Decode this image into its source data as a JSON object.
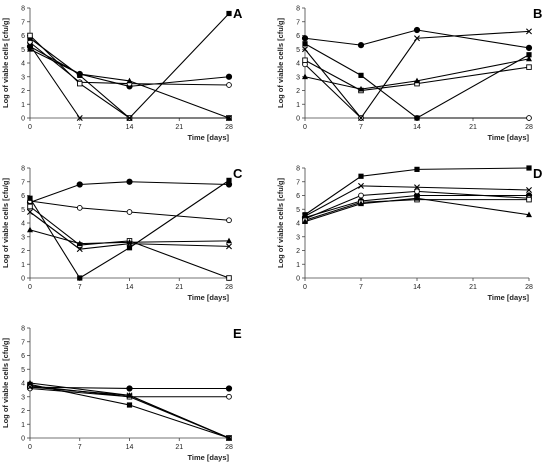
{
  "chart_data": [
    {
      "type": "line",
      "panel_label": "A",
      "xlabel": "Time [days]",
      "ylabel": "Log of viable cells [cfu/g]",
      "xlim": [
        0,
        28
      ],
      "ylim": [
        0,
        8
      ],
      "xticks": [
        0,
        7,
        14,
        21,
        28
      ],
      "yticks": [
        0,
        1,
        2,
        3,
        4,
        5,
        6,
        7,
        8
      ],
      "x": [
        0,
        7,
        14,
        28
      ],
      "series": [
        {
          "marker": "filled-circle",
          "values": [
            5.2,
            3.2,
            2.3,
            3.0
          ]
        },
        {
          "marker": "open-circle",
          "values": [
            5.5,
            2.6,
            2.5,
            2.4
          ]
        },
        {
          "marker": "filled-square",
          "values": [
            5.8,
            3.1,
            0,
            7.6
          ]
        },
        {
          "marker": "open-square",
          "values": [
            6.0,
            2.5,
            0,
            0
          ]
        },
        {
          "marker": "filled-triangle",
          "values": [
            5.0,
            3.2,
            2.7,
            0
          ]
        },
        {
          "marker": "cross",
          "values": [
            5.3,
            0,
            0,
            0
          ]
        }
      ]
    },
    {
      "type": "line",
      "panel_label": "B",
      "xlabel": "Time [days]",
      "ylabel": "Log of viable cells [cfu/g]",
      "xlim": [
        0,
        28
      ],
      "ylim": [
        0,
        8
      ],
      "xticks": [
        0,
        7,
        14,
        21,
        28
      ],
      "yticks": [
        0,
        1,
        2,
        3,
        4,
        5,
        6,
        7,
        8
      ],
      "x": [
        0,
        7,
        14,
        28
      ],
      "series": [
        {
          "marker": "filled-circle",
          "values": [
            5.8,
            5.3,
            6.4,
            5.1
          ]
        },
        {
          "marker": "open-circle",
          "values": [
            3.9,
            0,
            0,
            0
          ]
        },
        {
          "marker": "filled-square",
          "values": [
            5.4,
            3.1,
            0,
            4.6
          ]
        },
        {
          "marker": "open-square",
          "values": [
            4.2,
            2.0,
            2.5,
            3.7
          ]
        },
        {
          "marker": "filled-triangle",
          "values": [
            3.0,
            2.1,
            2.7,
            4.3
          ]
        },
        {
          "marker": "cross",
          "values": [
            5.0,
            0,
            5.8,
            6.3
          ]
        }
      ]
    },
    {
      "type": "line",
      "panel_label": "C",
      "xlabel": "Time [days]",
      "ylabel": "Log of viable cells [cfu/g]",
      "xlim": [
        0,
        28
      ],
      "ylim": [
        0,
        8
      ],
      "xticks": [
        0,
        7,
        14,
        21,
        28
      ],
      "yticks": [
        0,
        1,
        2,
        3,
        4,
        5,
        6,
        7,
        8
      ],
      "x": [
        0,
        7,
        14,
        28
      ],
      "series": [
        {
          "marker": "filled-circle",
          "values": [
            5.5,
            6.8,
            7.0,
            6.8
          ]
        },
        {
          "marker": "open-circle",
          "values": [
            5.6,
            5.1,
            4.8,
            4.2
          ]
        },
        {
          "marker": "filled-square",
          "values": [
            5.8,
            0,
            2.2,
            7.1
          ]
        },
        {
          "marker": "open-square",
          "values": [
            5.2,
            2.4,
            2.7,
            0
          ]
        },
        {
          "marker": "filled-triangle",
          "values": [
            3.5,
            2.5,
            2.6,
            2.7
          ]
        },
        {
          "marker": "cross",
          "values": [
            4.8,
            2.1,
            2.5,
            2.3
          ]
        }
      ]
    },
    {
      "type": "line",
      "panel_label": "D",
      "xlabel": "Time [days]",
      "ylabel": "Log of viable cells [cfu/g]",
      "xlim": [
        0,
        28
      ],
      "ylim": [
        0,
        8
      ],
      "xticks": [
        0,
        7,
        14,
        21,
        28
      ],
      "yticks": [
        0,
        1,
        2,
        3,
        4,
        5,
        6,
        7,
        8
      ],
      "x": [
        0,
        7,
        14,
        28
      ],
      "series": [
        {
          "marker": "filled-circle",
          "values": [
            4.4,
            5.6,
            6.0,
            6.0
          ]
        },
        {
          "marker": "open-circle",
          "values": [
            4.3,
            6.0,
            6.3,
            5.8
          ]
        },
        {
          "marker": "filled-square",
          "values": [
            4.6,
            7.4,
            7.9,
            8.0
          ]
        },
        {
          "marker": "open-square",
          "values": [
            4.2,
            5.5,
            5.7,
            5.7
          ]
        },
        {
          "marker": "filled-triangle",
          "values": [
            4.1,
            5.4,
            5.8,
            4.6
          ]
        },
        {
          "marker": "cross",
          "values": [
            4.5,
            6.7,
            6.6,
            6.4
          ]
        }
      ]
    },
    {
      "type": "line",
      "panel_label": "E",
      "xlabel": "Time [days]",
      "ylabel": "Log of viable cells [cfu/g]",
      "xlim": [
        0,
        28
      ],
      "ylim": [
        0,
        8
      ],
      "xticks": [
        0,
        7,
        14,
        21,
        28
      ],
      "yticks": [
        0,
        1,
        2,
        3,
        4,
        5,
        6,
        7,
        8
      ],
      "x": [
        0,
        14,
        28
      ],
      "series": [
        {
          "marker": "filled-circle",
          "values": [
            3.7,
            3.6,
            3.6
          ]
        },
        {
          "marker": "open-circle",
          "values": [
            3.6,
            3.0,
            3.0
          ]
        },
        {
          "marker": "filled-square",
          "values": [
            3.9,
            2.4,
            0
          ]
        },
        {
          "marker": "open-square",
          "values": [
            3.8,
            3.0,
            0
          ]
        },
        {
          "marker": "filled-triangle",
          "values": [
            4.0,
            3.1,
            0
          ]
        },
        {
          "marker": "cross",
          "values": [
            3.7,
            3.1,
            0
          ]
        }
      ]
    }
  ]
}
